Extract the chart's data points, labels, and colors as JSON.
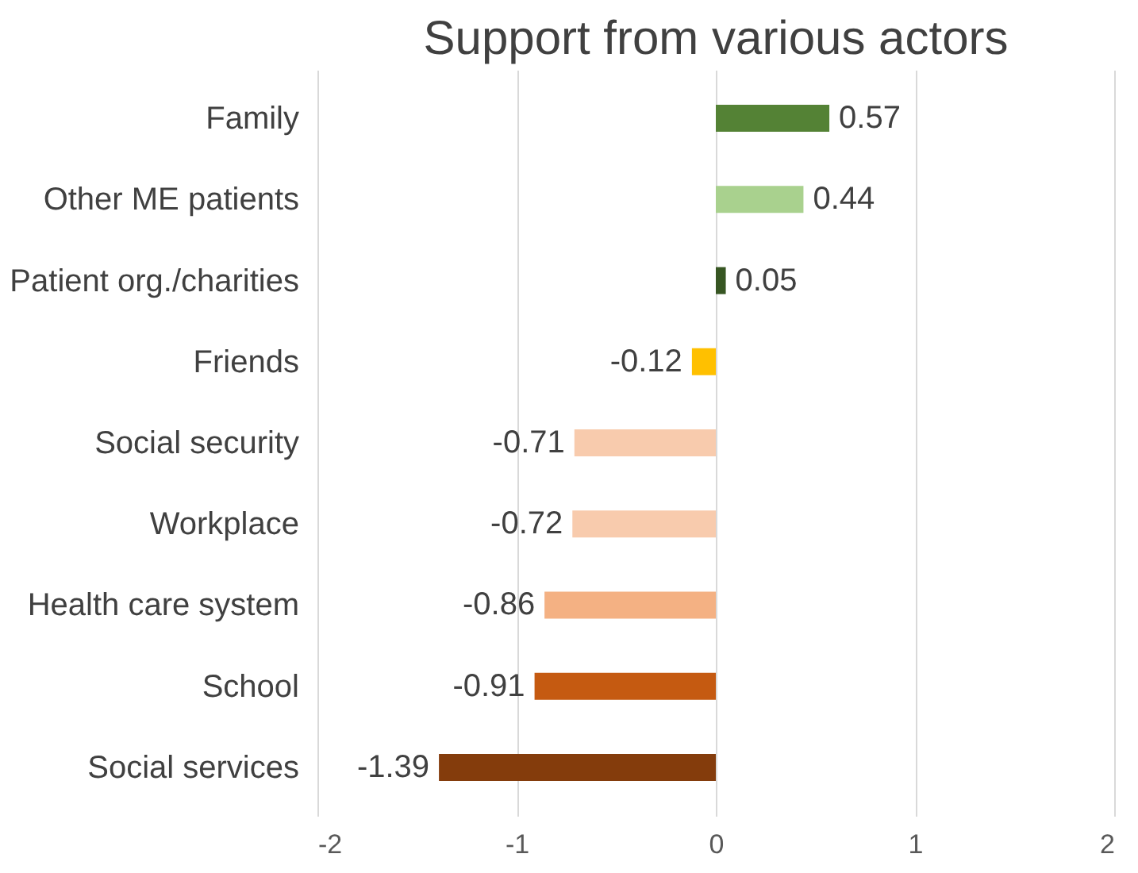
{
  "chart_data": {
    "type": "bar",
    "orientation": "horizontal",
    "title": "Support from various actors",
    "categories": [
      "Family",
      "Other ME patients",
      "Patient org./charities",
      "Friends",
      "Social security",
      "Workplace",
      "Health care system",
      "School",
      "Social services"
    ],
    "values": [
      0.57,
      0.44,
      0.05,
      -0.12,
      -0.71,
      -0.72,
      -0.86,
      -0.91,
      -1.39
    ],
    "colors": [
      "#548235",
      "#a9d18e",
      "#375623",
      "#ffc000",
      "#f8cbad",
      "#f8cbad",
      "#f4b183",
      "#c55a11",
      "#843c0c"
    ],
    "xlim": [
      -2,
      2
    ],
    "xticks": [
      -2,
      -1,
      0,
      1,
      2
    ],
    "grid": "x",
    "data_labels": true
  }
}
